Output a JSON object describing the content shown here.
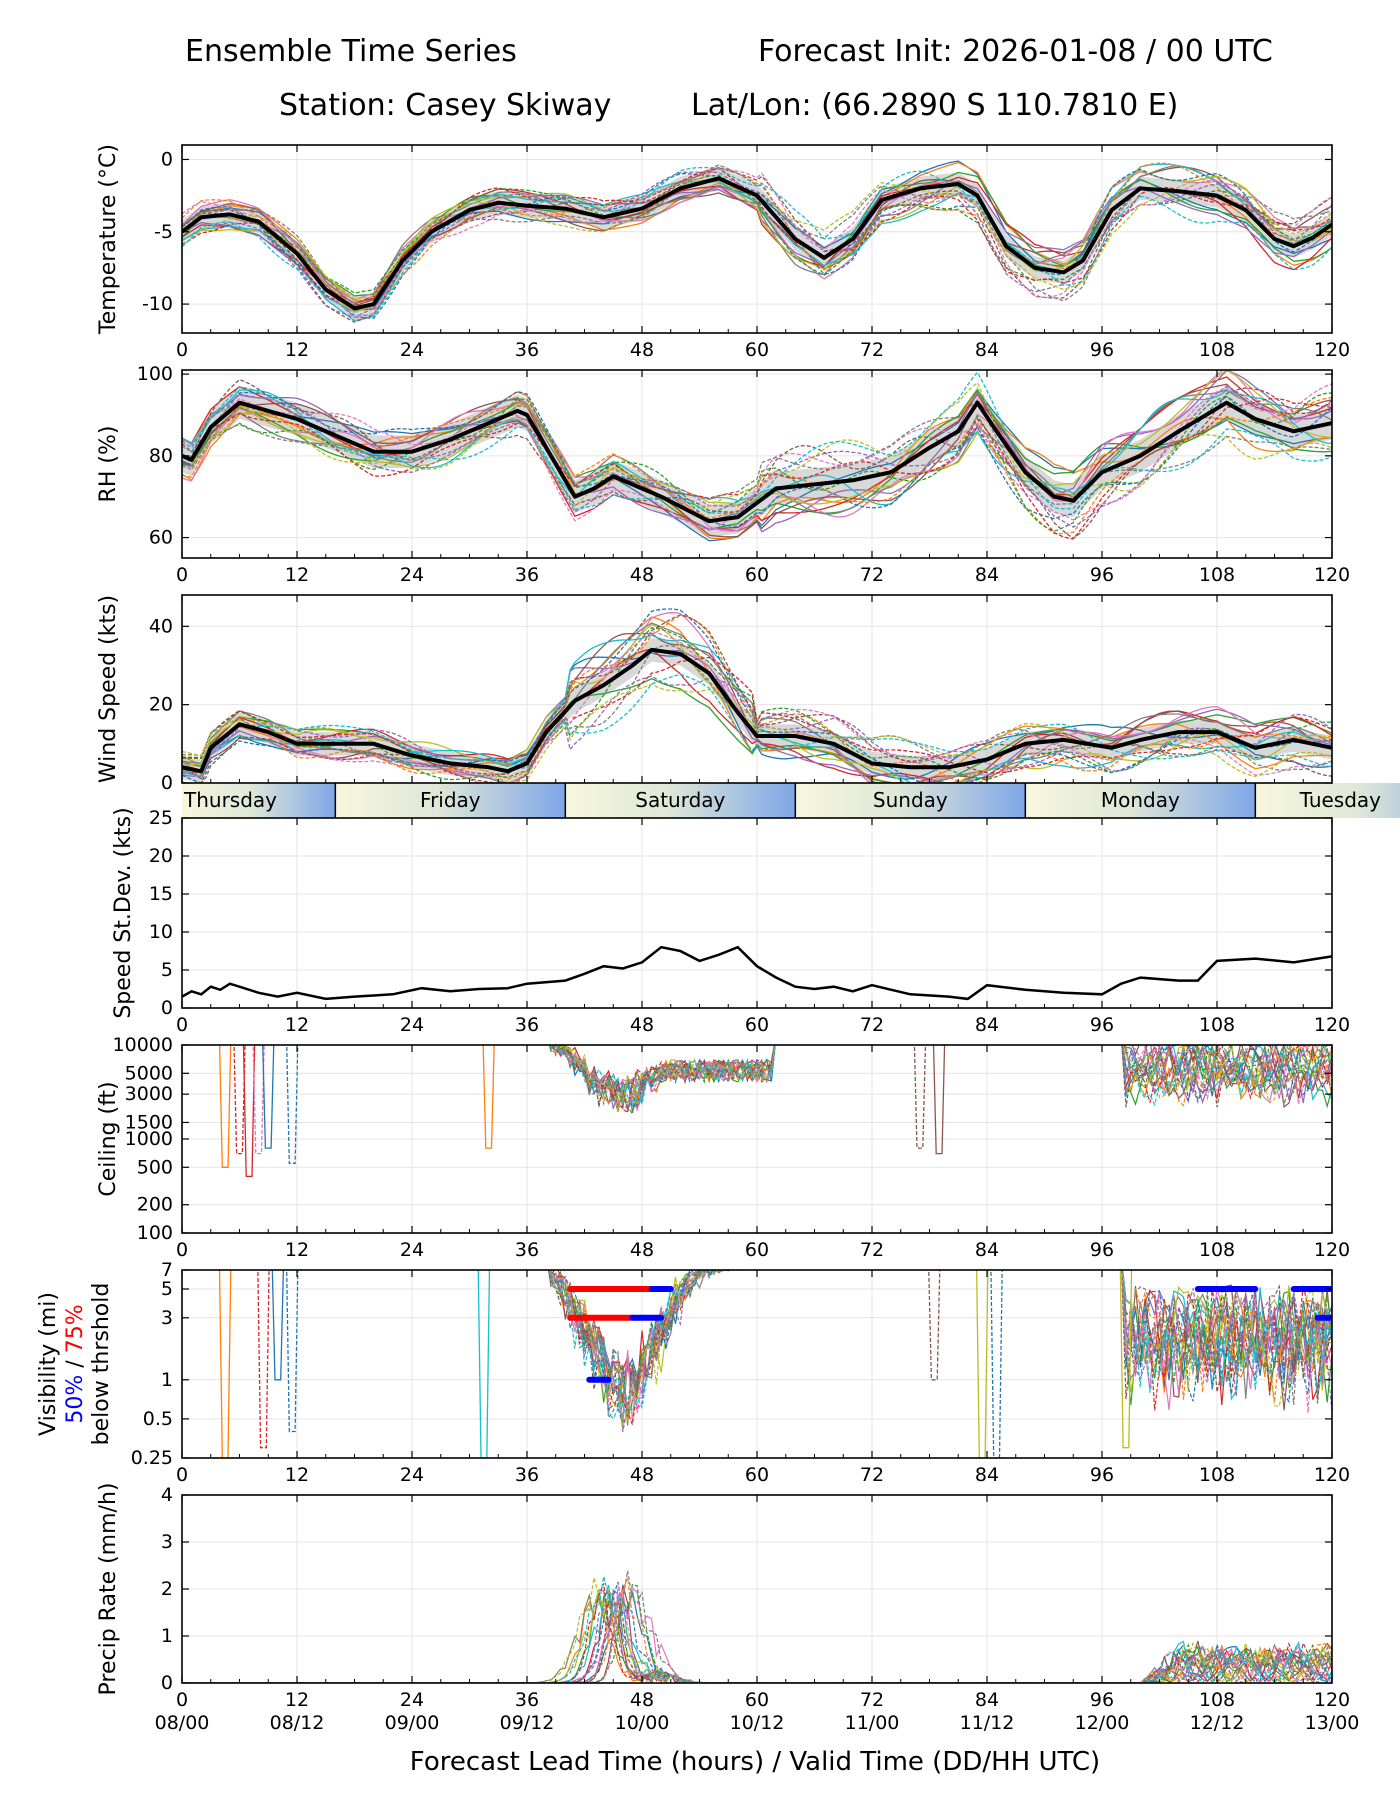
{
  "header": {
    "left_title": "Ensemble Time Series",
    "right_title": "Forecast Init: 2026-01-08 / 00 UTC",
    "station": "Station: Casey Skiway",
    "latlon": "Lat/Lon: (66.2890 S 110.7810 E)"
  },
  "day_band": {
    "days": [
      {
        "label": "Thursday",
        "start_hour": 0,
        "end_hour": 16
      },
      {
        "label": "Friday",
        "start_hour": 16,
        "end_hour": 40
      },
      {
        "label": "Saturday",
        "start_hour": 40,
        "end_hour": 64
      },
      {
        "label": "Sunday",
        "start_hour": 64,
        "end_hour": 88
      },
      {
        "label": "Monday",
        "start_hour": 88,
        "end_hour": 112
      },
      {
        "label": "Tuesday",
        "start_hour": 112,
        "end_hour": 136
      }
    ],
    "day_color": "#f7f7dc",
    "night_color": "#7ea6e8"
  },
  "x_axis": {
    "xlim": [
      0,
      120
    ],
    "ticks": [
      0,
      12,
      24,
      36,
      48,
      60,
      72,
      84,
      96,
      108,
      120
    ],
    "tick_labels": [
      "0",
      "12",
      "24",
      "36",
      "48",
      "60",
      "72",
      "84",
      "96",
      "108",
      "120"
    ],
    "valid_time_labels": [
      "08/00",
      "08/12",
      "09/00",
      "09/12",
      "10/00",
      "10/12",
      "11/00",
      "11/12",
      "12/00",
      "12/12",
      "13/00"
    ],
    "xlabel": "Forecast Lead Time (hours) / Valid Time (DD/HH UTC)"
  },
  "colors": {
    "members": [
      "#1f77b4",
      "#ff7f0e",
      "#2ca02c",
      "#d62728",
      "#9467bd",
      "#8c564b",
      "#e377c2",
      "#7f7f7f",
      "#bcbd22",
      "#17becf"
    ],
    "mean": "#000000",
    "spread": "#b8b8b8",
    "threshold_50": "#0000ff",
    "threshold_75": "#ff0000"
  },
  "chart_data": [
    {
      "id": "temperature",
      "type": "line",
      "ylabel": "Temperature (°C)",
      "ylim": [
        -12,
        1
      ],
      "yticks": [
        0,
        -5,
        -10
      ],
      "yticklabels": [
        "0",
        "-5",
        "-10"
      ],
      "ensemble_mean": {
        "x": [
          0,
          2,
          5,
          8,
          12,
          15,
          18,
          20,
          23,
          26,
          30,
          33,
          36,
          40,
          44,
          48,
          52,
          56,
          60,
          64,
          67,
          70,
          73,
          77,
          81,
          83,
          86,
          89,
          92,
          94,
          97,
          100,
          104,
          108,
          111,
          114,
          116,
          118,
          120
        ],
        "y": [
          -5,
          -4,
          -3.8,
          -4.3,
          -6.5,
          -9,
          -10.3,
          -10,
          -7,
          -5,
          -3.5,
          -3,
          -3.2,
          -3.4,
          -4,
          -3.4,
          -2,
          -1.3,
          -2.5,
          -5.5,
          -6.8,
          -5.5,
          -2.8,
          -2,
          -1.7,
          -2.5,
          -6,
          -7.5,
          -7.8,
          -7,
          -3.5,
          -2,
          -2.2,
          -2.5,
          -3.5,
          -5.5,
          -6,
          -5.4,
          -4.5
        ]
      },
      "spread_half_width": 0.8,
      "member_count": 20
    },
    {
      "id": "rh",
      "type": "line",
      "ylabel": "RH (%)",
      "ylim": [
        55,
        101
      ],
      "yticks": [
        100,
        80,
        60
      ],
      "yticklabels": [
        "100",
        "80",
        "60"
      ],
      "ensemble_mean": {
        "x": [
          0,
          1,
          3,
          6,
          9,
          12,
          16,
          20,
          24,
          28,
          32,
          35,
          36,
          38,
          41,
          43,
          45,
          50,
          55,
          58,
          62,
          66,
          70,
          74,
          78,
          81,
          83,
          85,
          88,
          91,
          93,
          96,
          100,
          104,
          109,
          112,
          116,
          120
        ],
        "y": [
          80,
          79,
          87,
          93,
          91,
          89,
          85,
          81,
          81,
          84,
          88,
          91,
          90,
          82,
          70,
          72,
          75,
          70,
          64,
          65,
          72,
          73,
          74,
          76,
          82,
          86,
          93,
          86,
          76,
          70,
          69,
          76,
          80,
          86,
          93,
          89,
          86,
          88
        ]
      },
      "spread_half_width": 4,
      "member_count": 20
    },
    {
      "id": "wind_speed",
      "type": "line",
      "ylabel": "Wind Speed (kts)",
      "ylim": [
        0,
        48
      ],
      "yticks": [
        0,
        20,
        40
      ],
      "yticklabels": [
        "0",
        "20",
        "40"
      ],
      "ensemble_mean": {
        "x": [
          0,
          2,
          3,
          6,
          9,
          12,
          16,
          20,
          24,
          28,
          32,
          34,
          36,
          38,
          41,
          44,
          47,
          49,
          52,
          55,
          58,
          60,
          64,
          68,
          72,
          76,
          80,
          84,
          88,
          92,
          97,
          100,
          104,
          108,
          112,
          116,
          120
        ],
        "y": [
          4,
          3,
          9,
          15,
          13,
          10,
          10,
          10,
          7,
          5,
          4,
          3,
          5,
          13,
          21,
          25,
          30,
          34,
          33,
          28,
          18,
          12,
          12,
          10,
          5,
          4,
          4,
          6,
          10,
          11,
          9,
          11,
          13,
          13,
          9,
          11,
          9
        ]
      },
      "spread_half_width": 3,
      "member_count": 20
    },
    {
      "id": "speed_stdev",
      "type": "line",
      "ylabel": "Speed St.Dev. (kts)",
      "ylim": [
        0,
        25
      ],
      "yticks": [
        0,
        5,
        10,
        15,
        20,
        25
      ],
      "yticklabels": [
        "0",
        "5",
        "10",
        "15",
        "20",
        "25"
      ],
      "series": [
        {
          "name": "Speed St.Dev.",
          "x": [
            0,
            1,
            2,
            3,
            4,
            5,
            6,
            8,
            10,
            12,
            15,
            18,
            22,
            25,
            28,
            31,
            34,
            36,
            40,
            42,
            44,
            46,
            48,
            50,
            52,
            54,
            56,
            58,
            60,
            62,
            64,
            66,
            68,
            70,
            72,
            76,
            80,
            82,
            84,
            88,
            92,
            96,
            98,
            100,
            104,
            106,
            108,
            112,
            116,
            120
          ],
          "y": [
            1.5,
            2.2,
            1.8,
            2.8,
            2.4,
            3.2,
            2.8,
            2.0,
            1.5,
            2.0,
            1.2,
            1.5,
            1.8,
            2.6,
            2.2,
            2.5,
            2.6,
            3.2,
            3.6,
            4.5,
            5.5,
            5.2,
            6.0,
            8.0,
            7.5,
            6.2,
            7.0,
            8.0,
            5.5,
            4.0,
            2.8,
            2.5,
            2.8,
            2.2,
            3.0,
            1.8,
            1.5,
            1.2,
            3.0,
            2.4,
            2.0,
            1.8,
            3.2,
            4.0,
            3.6,
            3.6,
            6.2,
            6.5,
            6.0,
            6.8
          ]
        }
      ]
    },
    {
      "id": "ceiling",
      "type": "line",
      "ylabel": "Ceiling (ft)",
      "yscale": "log",
      "ylim": [
        100,
        10000
      ],
      "yticks": [
        10000,
        5000,
        3000,
        1500,
        1000,
        500,
        200,
        100
      ],
      "yticklabels": [
        "10000",
        "5000",
        "3000",
        "1500",
        "1000",
        "500",
        "200",
        "100"
      ],
      "member_count": 20
    },
    {
      "id": "visibility",
      "type": "line",
      "ylabel": "Visibility (mi)",
      "yscale": "log",
      "ylim": [
        0.25,
        7
      ],
      "yticks": [
        7,
        5,
        3,
        1,
        0.5,
        0.25
      ],
      "yticklabels": [
        "7",
        "5",
        "3",
        "1",
        "0.5",
        "0.25"
      ],
      "threshold_label_50": "50%",
      "threshold_label_sep": " / ",
      "threshold_label_75": "75%",
      "threshold_label_suffix": "below thrshold",
      "threshold_segments": [
        {
          "level": "75%",
          "vis": 5,
          "x": [
            40.5,
            49
          ]
        },
        {
          "level": "50%",
          "vis": 5,
          "x": [
            49,
            51
          ]
        },
        {
          "level": "75%",
          "vis": 3,
          "x": [
            40.5,
            47
          ]
        },
        {
          "level": "50%",
          "vis": 3,
          "x": [
            47,
            50
          ]
        },
        {
          "level": "50%",
          "vis": 1,
          "x": [
            42.5,
            44.5
          ]
        },
        {
          "level": "50%",
          "vis": 5,
          "x": [
            106,
            112
          ]
        },
        {
          "level": "50%",
          "vis": 5,
          "x": [
            116,
            120
          ]
        },
        {
          "level": "50%",
          "vis": 3,
          "x": [
            118.5,
            120
          ]
        }
      ],
      "member_count": 20
    },
    {
      "id": "precip_rate",
      "type": "line",
      "ylabel": "Precip Rate (mm/h)",
      "ylim": [
        0,
        4
      ],
      "yticks": [
        0,
        1,
        2,
        3,
        4
      ],
      "yticklabels": [
        "0",
        "1",
        "2",
        "3",
        "4"
      ],
      "member_count": 20
    }
  ]
}
